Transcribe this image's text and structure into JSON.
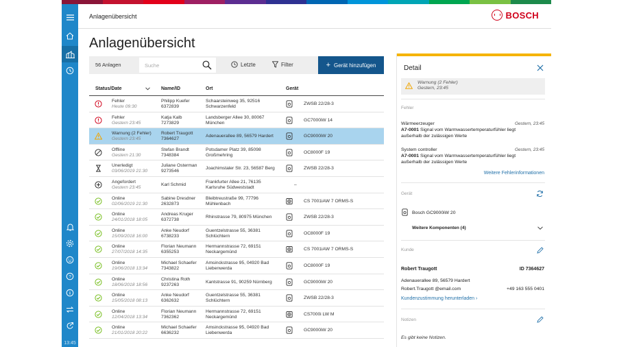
{
  "header": {
    "title": "Anlagenübersicht",
    "brand": "BOSCH"
  },
  "page": {
    "title": "Anlagenübersicht"
  },
  "leftbar": {
    "time": "13:45"
  },
  "toolbar": {
    "count": "56 Anlagen",
    "search_placeholder": "Suche",
    "recent_label": "Letzte",
    "filter_label": "Filter",
    "add_label": "Gerät hinzufügen"
  },
  "table": {
    "columns": {
      "status": "Status/Date",
      "name": "Name/ID",
      "ort": "Ort",
      "device": "Gerät"
    },
    "rows": [
      {
        "status_type": "error",
        "status": "Fehler",
        "date": "Heute 09:30",
        "name": "Philipp Kuefer",
        "id": "6372839",
        "ort1": "Schaarsteinweg 35, 92516",
        "ort2": "Schwarzenfeld",
        "device_icon": "boiler",
        "device": "ZWSB 22/28-3"
      },
      {
        "status_type": "error",
        "status": "Fehler",
        "date": "Gestern 23:45",
        "name": "Katja Kalb",
        "id": "7273829",
        "ort1": "Landsberger Allee 30, 80067",
        "ort2": "München",
        "device_icon": "boiler",
        "device": "GC7000iW 14"
      },
      {
        "status_type": "warning",
        "status": "Warnung (2 Fehler)",
        "date": "Gestern 23:45",
        "name": "Robert Traugott",
        "id": "7364627",
        "ort1": "Adenauerallee 89, 56579 Hardert",
        "ort2": "",
        "device_icon": "boiler",
        "device": "GC9000iW 20",
        "selected": true
      },
      {
        "status_type": "offline",
        "status": "Offline",
        "date": "Gestern 21:30",
        "name": "Stefan Brandt",
        "id": "7348384",
        "ort1": "Potsdamer Platz 39, 85098",
        "ort2": "Großmehring",
        "device_icon": "boiler",
        "device": "OC8000F 19"
      },
      {
        "status_type": "pending",
        "status": "Unerledigt",
        "date": "03/06/2019 21:30",
        "name": "Juliane Osterman",
        "id": "9273546",
        "ort1": "Joachimstaler Str. 23, 56587 Berg",
        "ort2": "",
        "device_icon": "boiler",
        "device": "ZWSB 22/28-3"
      },
      {
        "status_type": "requested",
        "status": "Angefordert",
        "date": "Gestern 23:45",
        "name": "Karl Schmid",
        "id": "",
        "ort1": "Frankfurter Allee 21, 76135",
        "ort2": "Karlsruhe Südweststadt",
        "device_icon": "none",
        "device": "–"
      },
      {
        "status_type": "online",
        "status": "Online",
        "date": "02/06/2019 21:30",
        "name": "Sabine Dresdner",
        "id": "2632873",
        "ort1": "Bleibtreustraße 99, 77796",
        "ort2": "Mühlenbach",
        "device_icon": "heatpump",
        "device": "CS 7001iAW 7 ORMS-S"
      },
      {
        "status_type": "online",
        "status": "Online",
        "date": "24/01/2018 18:05",
        "name": "Andreas Kruger",
        "id": "6372738",
        "ort1": "Rhinstrasse 79, 80975 München",
        "ort2": "",
        "device_icon": "boiler",
        "device": "ZWSB 22/28-3"
      },
      {
        "status_type": "online",
        "status": "Online",
        "date": "15/09/2018 16:00",
        "name": "Anke Neudorf",
        "id": "6738233",
        "ort1": "Guentzelstrasse 55, 36381",
        "ort2": "Schlüchtern",
        "device_icon": "boiler",
        "device": "OC8000F 19"
      },
      {
        "status_type": "online",
        "status": "Online",
        "date": "27/07/2018 14:35",
        "name": "Florian Neumann",
        "id": "6355253",
        "ort1": "Hermannstrasse 72, 69151",
        "ort2": "Neckargemünd",
        "device_icon": "heatpump",
        "device": "CS 7001iAW 7 ORMS-S"
      },
      {
        "status_type": "online",
        "status": "Online",
        "date": "19/06/2018 13:34",
        "name": "Michael Schaefer",
        "id": "7343822",
        "ort1": "Amsinckstrasse 95, 04920 Bad",
        "ort2": "Liebenwerda",
        "device_icon": "boiler",
        "device": "OC8000F 19"
      },
      {
        "status_type": "online",
        "status": "Online",
        "date": "18/06/2018 18:56",
        "name": "Christina Roth",
        "id": "9237263",
        "ort1": "Kantstrasse 91, 90259 Nürnberg",
        "ort2": "",
        "device_icon": "boiler",
        "device": "GC9000iW 20"
      },
      {
        "status_type": "online",
        "status": "Online",
        "date": "15/05/2018 08:13",
        "name": "Anke Neudorf",
        "id": "6362632",
        "ort1": "Guentzelstrasse 55, 36381",
        "ort2": "Schlüchtern",
        "device_icon": "boiler",
        "device": "ZWSB 22/28-3"
      },
      {
        "status_type": "online",
        "status": "Online",
        "date": "12/04/2018 13:34",
        "name": "Florian Neumann",
        "id": "7362362",
        "ort1": "Hermannstrasse 72, 69151",
        "ort2": "Neckargemünd",
        "device_icon": "heatpump",
        "device": "CS7000i LW M"
      },
      {
        "status_type": "online",
        "status": "Online",
        "date": "21/01/2018 20:22",
        "name": "Michael Schaefer",
        "id": "6636232",
        "ort1": "Amsinckstrasse 95, 04920 Bad",
        "ort2": "Liebenwerda",
        "device_icon": "boiler",
        "device": "GC9000iW 20"
      }
    ]
  },
  "detail": {
    "title": "Detail",
    "warning_title": "Warnung (2 Fehler)",
    "warning_date": "Gestern, 23:45",
    "errors_heading": "Fehler",
    "error1_source": "Wärmeerzeuger",
    "error1_time": "Gestern, 23:45",
    "error1_code": "A7-0001",
    "error1_text": " Signal vom Warmwassertemperaturfühler liegt",
    "error1_text2": "außerhalb der zulässigen Werte",
    "error2_source": "System controller",
    "error2_time": "Gestern, 23:45",
    "error2_code": "A7-0001",
    "error2_text": " Signal vom Warmwassertemperaturfühler liegt",
    "error2_text2": "außerhalb der zulässigen Werte",
    "more_errors_link": "Weitere Fehlerinformationen",
    "device_heading": "Gerät",
    "device_name": "Bosch GC9000iW 20",
    "more_components": "Weitere Komponenten (4)",
    "customer_heading": "Kunde",
    "customer_name": "Robert Traugott",
    "customer_id": "ID 7364627",
    "customer_address": "Adenauerallee 89, 56579 Hardert",
    "customer_email": "Robert.Traugott @email.com",
    "customer_phone": "+49 163 555 0401",
    "consent_link": "Kundenzustimmung herunterladen",
    "notes_heading": "Notizen",
    "notes_empty": "Es gibt keine Notizen."
  },
  "colors": {
    "accent": "#14568c",
    "sidebar": "#1f87c9",
    "warning": "#f5b400",
    "selected_row": "#a9d4ee",
    "error": "#d0021b",
    "online": "#78be20"
  }
}
